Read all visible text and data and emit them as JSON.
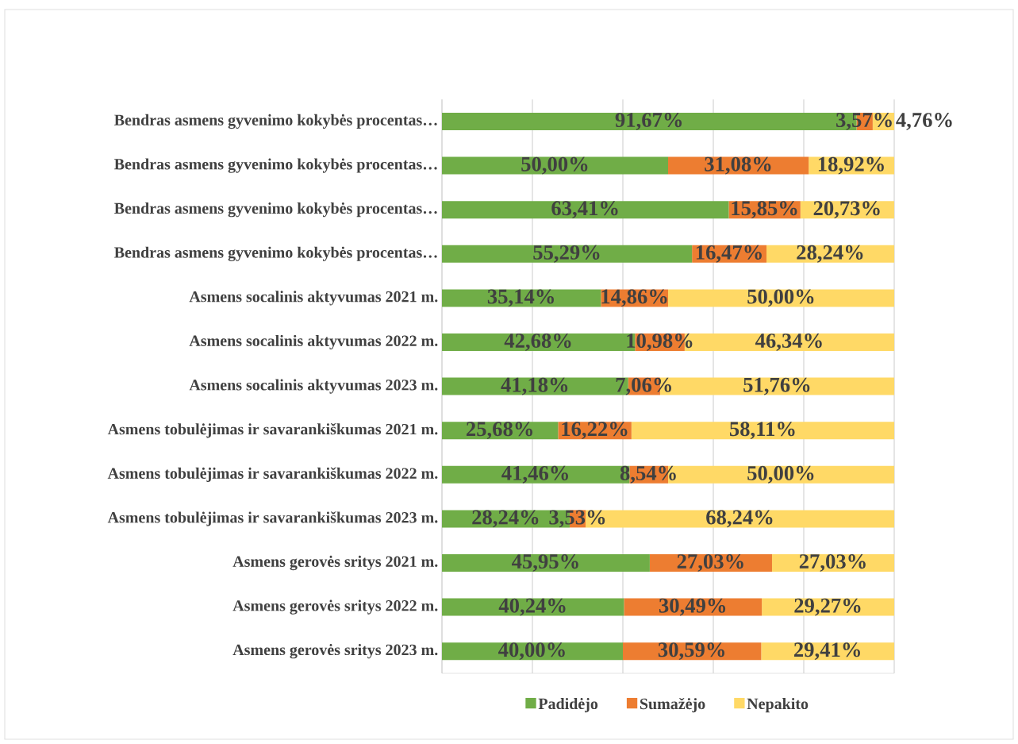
{
  "chart_data": {
    "type": "bar",
    "orientation": "horizontal",
    "stacked": true,
    "categories": [
      "Bendras asmens gyvenimo kokybės procentas…",
      "Bendras asmens gyvenimo kokybės procentas…",
      "Bendras asmens gyvenimo kokybės procentas…",
      "Bendras asmens gyvenimo kokybės procentas…",
      "Asmens socalinis aktyvumas 2021 m.",
      "Asmens socalinis aktyvumas 2022 m.",
      "Asmens socalinis aktyvumas 2023 m.",
      "Asmens tobulėjimas ir savarankiškumas 2021 m.",
      "Asmens tobulėjimas ir savarankiškumas 2022 m.",
      "Asmens tobulėjimas ir savarankiškumas 2023 m.",
      "Asmens gerovės sritys 2021 m.",
      "Asmens gerovės sritys 2022 m.",
      "Asmens gerovės sritys 2023 m."
    ],
    "series": [
      {
        "name": "Padidėjo",
        "color": "#70ad47",
        "values": [
          91.67,
          50.0,
          63.41,
          55.29,
          35.14,
          42.68,
          41.18,
          25.68,
          41.46,
          28.24,
          45.95,
          40.24,
          40.0
        ],
        "value_labels": [
          "91,67%",
          "50,00%",
          "63,41%",
          "55,29%",
          "35,14%",
          "42,68%",
          "41,18%",
          "25,68%",
          "41,46%",
          "28,24%",
          "45,95%",
          "40,24%",
          "40,00%"
        ]
      },
      {
        "name": "Sumažėjo",
        "color": "#ed7d31",
        "values": [
          3.57,
          31.08,
          15.85,
          16.47,
          14.86,
          10.98,
          7.06,
          16.22,
          8.54,
          3.53,
          27.03,
          30.49,
          30.59
        ],
        "value_labels": [
          "3,57%",
          "31,08%",
          "15,85%",
          "16,47%",
          "14,86%",
          "10,98%",
          "7,06%",
          "16,22%",
          "8,54%",
          "3,53%",
          "27,03%",
          "30,49%",
          "30,59%"
        ]
      },
      {
        "name": "Nepakito",
        "color": "#ffd966",
        "values": [
          4.76,
          18.92,
          20.73,
          28.24,
          50.0,
          46.34,
          51.76,
          58.11,
          50.0,
          68.24,
          27.03,
          29.27,
          29.41
        ],
        "value_labels": [
          "4,76%",
          "18,92%",
          "20,73%",
          "28,24%",
          "50,00%",
          "46,34%",
          "51,76%",
          "58,11%",
          "50,00%",
          "68,24%",
          "27,03%",
          "29,27%",
          "29,41%"
        ]
      }
    ],
    "xlim": [
      0,
      100
    ],
    "xticks": [
      {
        "value": 0,
        "label": null
      },
      {
        "value": 20,
        "label": null
      },
      {
        "value": 40,
        "label": null
      },
      {
        "value": 60,
        "label": null
      },
      {
        "value": 80,
        "label": null
      },
      {
        "value": 100,
        "label": null
      }
    ],
    "tick_labels": "y",
    "grid": "x",
    "legend": "bottom"
  }
}
